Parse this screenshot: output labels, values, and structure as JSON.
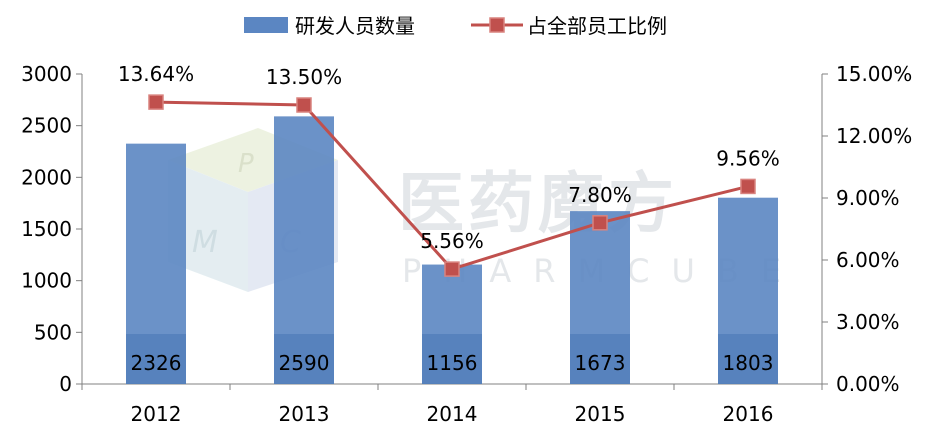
{
  "colors": {
    "bar": "#5b86c2",
    "bar_label_band": "#4a78b5",
    "line": "#c0504d",
    "marker_fill": "#c0504d",
    "marker_stroke": "#d9837f",
    "axis": "#808080",
    "text": "#000000",
    "watermark": "#d8dde3"
  },
  "watermark": {
    "cn": "医药魔方",
    "en": "PHARMCUBE",
    "cube_letters": [
      "P",
      "M",
      "C"
    ]
  },
  "chart_data": {
    "type": "bar",
    "categories": [
      "2012",
      "2013",
      "2014",
      "2015",
      "2016"
    ],
    "series": [
      {
        "name": "研发人员数量",
        "type": "bar",
        "axis": "left",
        "values": [
          2326,
          2590,
          1156,
          1673,
          1803
        ],
        "labels": [
          "2326",
          "2590",
          "1156",
          "1673",
          "1803"
        ]
      },
      {
        "name": "占全部员工比例",
        "type": "line",
        "axis": "right",
        "values": [
          13.64,
          13.5,
          5.56,
          7.8,
          9.56
        ],
        "labels": [
          "13.64%",
          "13.50%",
          "5.56%",
          "7.80%",
          "9.56%"
        ]
      }
    ],
    "y_left": {
      "ylim": [
        0,
        3000
      ],
      "ticks": [
        0,
        500,
        1000,
        1500,
        2000,
        2500,
        3000
      ],
      "tick_labels": [
        "0",
        "500",
        "1000",
        "1500",
        "2000",
        "2500",
        "3000"
      ]
    },
    "y_right": {
      "ylim": [
        0,
        15
      ],
      "ticks": [
        0,
        3,
        6,
        9,
        12,
        15
      ],
      "tick_labels": [
        "0.00%",
        "3.00%",
        "6.00%",
        "9.00%",
        "12.00%",
        "15.00%"
      ]
    },
    "legend_position": "top-center",
    "grid": false
  }
}
